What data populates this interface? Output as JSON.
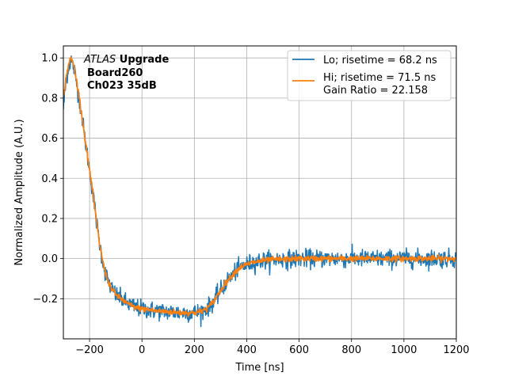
{
  "chart_data": {
    "type": "line",
    "title": "",
    "xlabel": "Time [ns]",
    "ylabel": "Normalized Amplitude (A.U.)",
    "xlim": [
      -300,
      1200
    ],
    "ylim": [
      -0.4,
      1.06
    ],
    "xticks": [
      -200,
      0,
      200,
      400,
      600,
      800,
      1000,
      1200
    ],
    "xtick_labels": [
      "−200",
      "0",
      "200",
      "400",
      "600",
      "800",
      "1000",
      "1200"
    ],
    "yticks": [
      -0.2,
      0.0,
      0.2,
      0.4,
      0.6,
      0.8,
      1.0
    ],
    "ytick_labels": [
      "−0.2",
      "0.0",
      "0.2",
      "0.4",
      "0.6",
      "0.8",
      "1.0"
    ],
    "grid": true,
    "legend_position": "upper-right",
    "annotation": {
      "line1_italic": "ATLAS",
      "line1_bold": " Upgrade",
      "line2": "Board260",
      "line3": "Ch023 35dB"
    },
    "x_points": [
      -300,
      -290,
      -280,
      -270,
      -260,
      -250,
      -240,
      -230,
      -220,
      -210,
      -200,
      -190,
      -180,
      -170,
      -160,
      -150,
      -140,
      -130,
      -120,
      -110,
      -100,
      -80,
      -60,
      -40,
      -20,
      0,
      50,
      100,
      150,
      200,
      220,
      240,
      260,
      280,
      300,
      320,
      340,
      360,
      380,
      400,
      420,
      440,
      460,
      480,
      500,
      550,
      600,
      700,
      800,
      900,
      1000,
      1100,
      1200
    ],
    "series": [
      {
        "name": "Lo",
        "label": "Lo; risetime = 68.2 ns",
        "color": "#1f77b4",
        "noise": 0.022,
        "values": [
          0.75,
          0.88,
          0.96,
          0.99,
          0.95,
          0.88,
          0.8,
          0.72,
          0.62,
          0.53,
          0.44,
          0.35,
          0.25,
          0.15,
          0.06,
          -0.01,
          -0.07,
          -0.11,
          -0.14,
          -0.16,
          -0.18,
          -0.2,
          -0.22,
          -0.235,
          -0.245,
          -0.25,
          -0.26,
          -0.265,
          -0.27,
          -0.27,
          -0.265,
          -0.255,
          -0.235,
          -0.2,
          -0.16,
          -0.12,
          -0.09,
          -0.06,
          -0.04,
          -0.03,
          -0.02,
          -0.015,
          -0.01,
          -0.008,
          -0.005,
          -0.003,
          0.0,
          0.0,
          0.0,
          0.0,
          0.0,
          0.0,
          0.0
        ]
      },
      {
        "name": "Hi",
        "label": "Hi; risetime = 71.5 ns",
        "label_line2": " Gain Ratio = 22.158",
        "color": "#ff7f0e",
        "noise": 0.007,
        "values": [
          0.8,
          0.9,
          0.97,
          1.0,
          0.96,
          0.89,
          0.81,
          0.72,
          0.62,
          0.53,
          0.44,
          0.35,
          0.25,
          0.15,
          0.06,
          -0.01,
          -0.07,
          -0.11,
          -0.14,
          -0.16,
          -0.18,
          -0.2,
          -0.22,
          -0.235,
          -0.245,
          -0.25,
          -0.26,
          -0.265,
          -0.27,
          -0.27,
          -0.265,
          -0.255,
          -0.235,
          -0.2,
          -0.16,
          -0.12,
          -0.09,
          -0.06,
          -0.04,
          -0.03,
          -0.02,
          -0.015,
          -0.01,
          -0.008,
          -0.005,
          -0.003,
          0.0,
          0.0,
          0.0,
          0.0,
          0.0,
          0.0,
          0.0
        ]
      }
    ]
  }
}
